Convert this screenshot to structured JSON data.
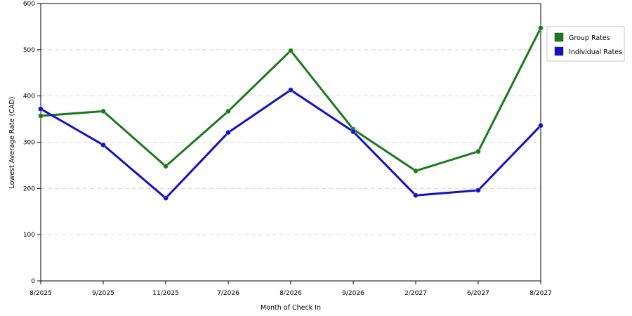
{
  "chart_data": {
    "type": "line",
    "title": "",
    "xlabel": "Month of Check In",
    "ylabel": "Lowest Average Rate (CAD)",
    "categories": [
      "8/2025",
      "9/2025",
      "11/2025",
      "7/2026",
      "8/2026",
      "9/2026",
      "2/2027",
      "6/2027",
      "8/2027"
    ],
    "yticks": [
      "0",
      "100",
      "200",
      "300",
      "400",
      "500",
      "600"
    ],
    "ylim": [
      0,
      600
    ],
    "grid": true,
    "legend_position": "right",
    "series": [
      {
        "name": "Group Rates",
        "color": "#1a7a1a",
        "values": [
          357,
          367,
          248,
          367,
          498,
          328,
          238,
          280,
          547
        ]
      },
      {
        "name": "Individual Rates",
        "color": "#1010c8",
        "values": [
          372,
          294,
          179,
          321,
          413,
          323,
          185,
          196,
          336
        ]
      }
    ]
  }
}
